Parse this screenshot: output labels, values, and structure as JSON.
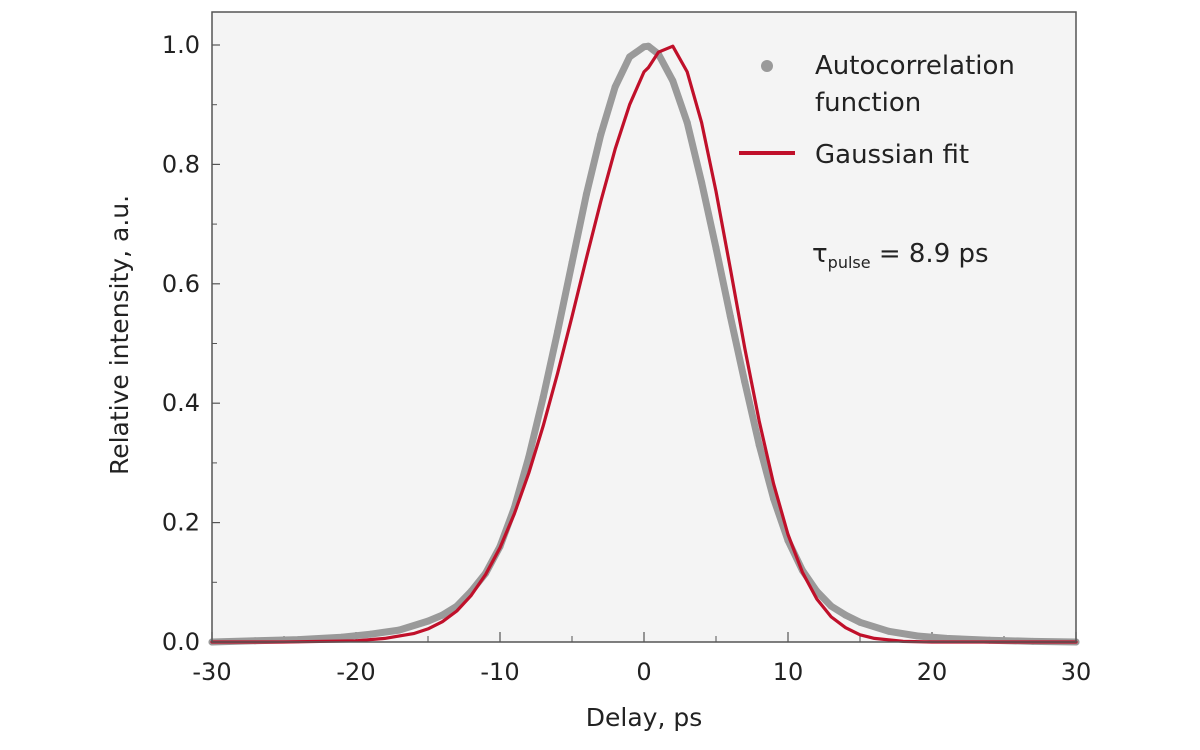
{
  "chart_data": {
    "type": "scatter",
    "title": "",
    "xlabel": "Delay, ps",
    "ylabel": "Relative intensity, a.u.",
    "xlim": [
      -30,
      30
    ],
    "ylim": [
      0,
      1.0
    ],
    "x_ticks": [
      -30,
      -20,
      -10,
      0,
      10,
      20,
      30
    ],
    "x_tick_labels": [
      "-30",
      "-20",
      "-10",
      "0",
      "10",
      "20",
      "30"
    ],
    "y_ticks": [
      0.0,
      0.2,
      0.4,
      0.6,
      0.8,
      1.0
    ],
    "y_tick_labels": [
      "0.0",
      "0.2",
      "0.4",
      "0.6",
      "0.8",
      "1.0"
    ],
    "grid": false,
    "legend_position": "top-right",
    "colors": {
      "autocorrelation": "#9a9a9a",
      "fit": "#c0102a",
      "plot_bg": "#f4f4f4"
    },
    "series": [
      {
        "name": "Autocorrelation function",
        "kind": "scatter",
        "x": [
          -30,
          -27,
          -24,
          -21,
          -19,
          -17,
          -15,
          -14,
          -13,
          -12,
          -11,
          -10,
          -9,
          -8,
          -7,
          -6,
          -5,
          -4,
          -3,
          -2,
          -1,
          0,
          0.3,
          1,
          2,
          3,
          4,
          5,
          6,
          7,
          8,
          9,
          10,
          11,
          12,
          13,
          14,
          15,
          17,
          19,
          21,
          24,
          27,
          30
        ],
        "y": [
          0.0,
          0.002,
          0.004,
          0.008,
          0.013,
          0.02,
          0.035,
          0.045,
          0.06,
          0.085,
          0.115,
          0.16,
          0.225,
          0.31,
          0.41,
          0.52,
          0.635,
          0.75,
          0.85,
          0.93,
          0.98,
          0.997,
          0.998,
          0.985,
          0.94,
          0.87,
          0.77,
          0.66,
          0.545,
          0.435,
          0.33,
          0.24,
          0.17,
          0.12,
          0.085,
          0.06,
          0.045,
          0.033,
          0.018,
          0.01,
          0.006,
          0.003,
          0.001,
          0.0
        ]
      },
      {
        "name": "Gaussian fit",
        "kind": "line",
        "x": [
          -30,
          -25,
          -20,
          -18,
          -16,
          -15,
          -14,
          -13,
          -12,
          -11,
          -10,
          -9,
          -8,
          -7,
          -6,
          -5,
          -4,
          -3,
          -2,
          -1,
          0,
          0.3,
          1,
          2,
          3,
          4,
          5,
          6,
          7,
          8,
          9,
          10,
          11,
          12,
          13,
          14,
          15,
          16,
          18,
          20,
          25,
          30
        ],
        "y": [
          0.0,
          0.0,
          0.002,
          0.006,
          0.014,
          0.022,
          0.034,
          0.052,
          0.078,
          0.113,
          0.158,
          0.215,
          0.283,
          0.362,
          0.45,
          0.545,
          0.643,
          0.738,
          0.826,
          0.9,
          0.955,
          0.962,
          0.988,
          0.998,
          0.955,
          0.87,
          0.755,
          0.625,
          0.492,
          0.37,
          0.265,
          0.18,
          0.117,
          0.072,
          0.042,
          0.024,
          0.012,
          0.006,
          0.001,
          0.0,
          0.0,
          0.0
        ]
      }
    ],
    "annotations": [
      {
        "symbol": "τ",
        "subscript": "pulse",
        "text": " = 8.9 ps"
      }
    ]
  },
  "legend": {
    "autocorrelation_line1": "Autocorrelation",
    "autocorrelation_line2": "function",
    "fit": "Gaussian fit"
  }
}
